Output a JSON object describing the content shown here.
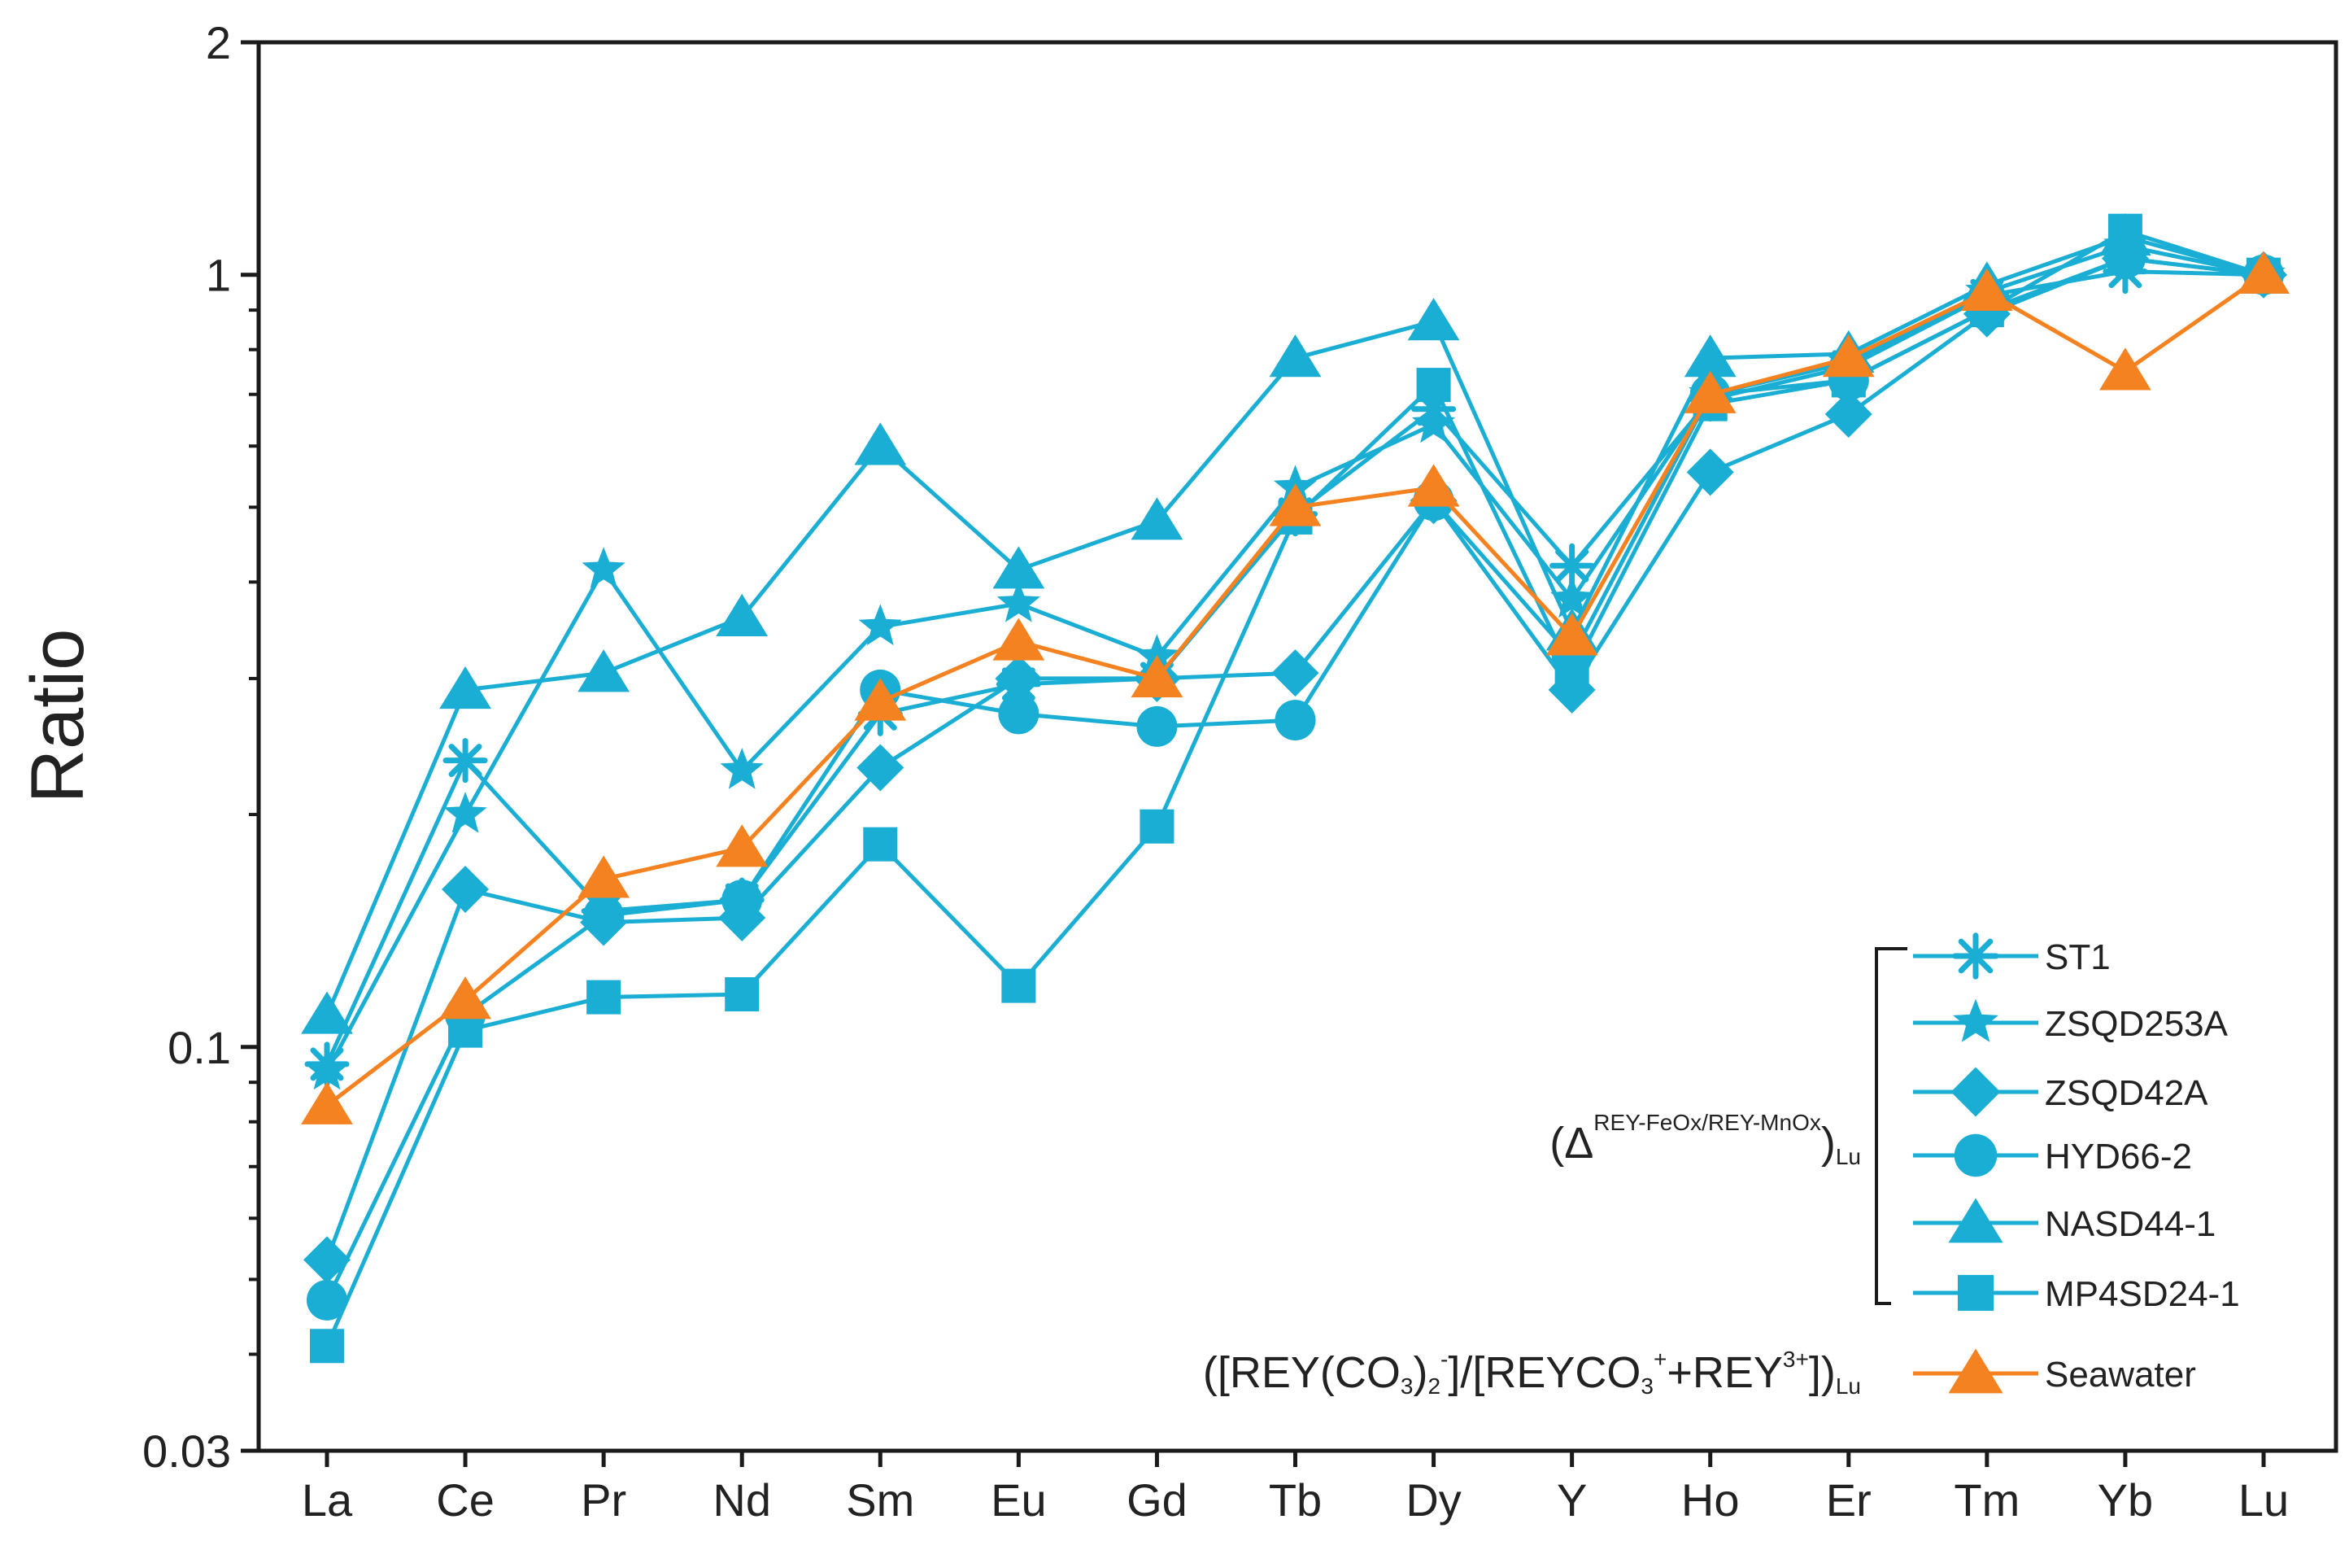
{
  "chart_data": {
    "type": "line",
    "title": "",
    "xlabel": "",
    "ylabel": "Ratio",
    "yscale": "log",
    "ylim": [
      0.03,
      2
    ],
    "yticks": [
      {
        "value": 0.03,
        "label": "0.03"
      },
      {
        "value": 0.1,
        "label": "0.1"
      },
      {
        "value": 1,
        "label": "1"
      },
      {
        "value": 2,
        "label": "2"
      }
    ],
    "categories": [
      "La",
      "Ce",
      "Pr",
      "Nd",
      "Sm",
      "Eu",
      "Gd",
      "Tb",
      "Dy",
      "Y",
      "Ho",
      "Er",
      "Tm",
      "Yb",
      "Lu"
    ],
    "series": [
      {
        "name": "ST1",
        "marker": "asterisk",
        "color": "#1aaed4",
        "values": [
          0.095,
          0.235,
          0.15,
          0.155,
          0.27,
          0.295,
          0.3,
          0.49,
          0.67,
          0.42,
          0.69,
          0.76,
          0.94,
          1.01,
          1.0
        ]
      },
      {
        "name": "ZSQD253A",
        "marker": "star",
        "color": "#1aaed4",
        "values": [
          0.093,
          0.2,
          0.415,
          0.228,
          0.35,
          0.375,
          0.32,
          0.53,
          0.64,
          0.38,
          0.7,
          0.77,
          0.95,
          1.09,
          1.0
        ]
      },
      {
        "name": "ZSQD42A",
        "marker": "diamond",
        "color": "#1aaed4",
        "values": [
          0.053,
          0.16,
          0.145,
          0.147,
          0.23,
          0.3,
          0.3,
          0.305,
          0.51,
          0.29,
          0.555,
          0.66,
          0.89,
          1.05,
          1.0
        ]
      },
      {
        "name": "HYD66-2",
        "marker": "circle",
        "color": "#1aaed4",
        "values": [
          0.047,
          0.11,
          0.148,
          0.155,
          0.29,
          0.27,
          0.26,
          0.265,
          0.51,
          0.32,
          0.7,
          0.73,
          0.9,
          1.05,
          1.0
        ]
      },
      {
        "name": "NASD44-1",
        "marker": "triangle",
        "color": "#1aaed4",
        "values": [
          0.11,
          0.29,
          0.305,
          0.36,
          0.6,
          0.415,
          0.48,
          0.78,
          0.87,
          0.345,
          0.78,
          0.79,
          0.97,
          1.12,
          1.0
        ]
      },
      {
        "name": "MP4SD24-1",
        "marker": "square",
        "color": "#1aaed4",
        "values": [
          0.041,
          0.105,
          0.116,
          0.117,
          0.183,
          0.12,
          0.193,
          0.485,
          0.72,
          0.305,
          0.68,
          0.73,
          0.9,
          1.14,
          1.0
        ]
      },
      {
        "name": "Seawater",
        "marker": "triangle",
        "color": "#f58220",
        "values": [
          0.084,
          0.115,
          0.165,
          0.181,
          0.28,
          0.335,
          0.3,
          0.5,
          0.53,
          0.34,
          0.7,
          0.78,
          0.95,
          0.75,
          1.0
        ]
      }
    ],
    "annotations": {
      "group_label_main": "(Δ",
      "group_label_sup": "REY-FeOx/REY-MnOx",
      "group_label_close": ")",
      "group_label_sub": "Lu",
      "seawater_label_parts": [
        {
          "text": "([REY(CO",
          "style": "normal"
        },
        {
          "text": "3",
          "style": "sub"
        },
        {
          "text": ")",
          "style": "normal"
        },
        {
          "text": "2",
          "style": "sub"
        },
        {
          "text": "-",
          "style": "sup"
        },
        {
          "text": "]/[REYCO",
          "style": "normal"
        },
        {
          "text": "3",
          "style": "sub"
        },
        {
          "text": "+",
          "style": "sup"
        },
        {
          "text": "+REY",
          "style": "normal"
        },
        {
          "text": "3+",
          "style": "sup"
        },
        {
          "text": "])",
          "style": "normal"
        },
        {
          "text": "Lu",
          "style": "sub"
        }
      ]
    },
    "legend_position": "bottom-right"
  }
}
